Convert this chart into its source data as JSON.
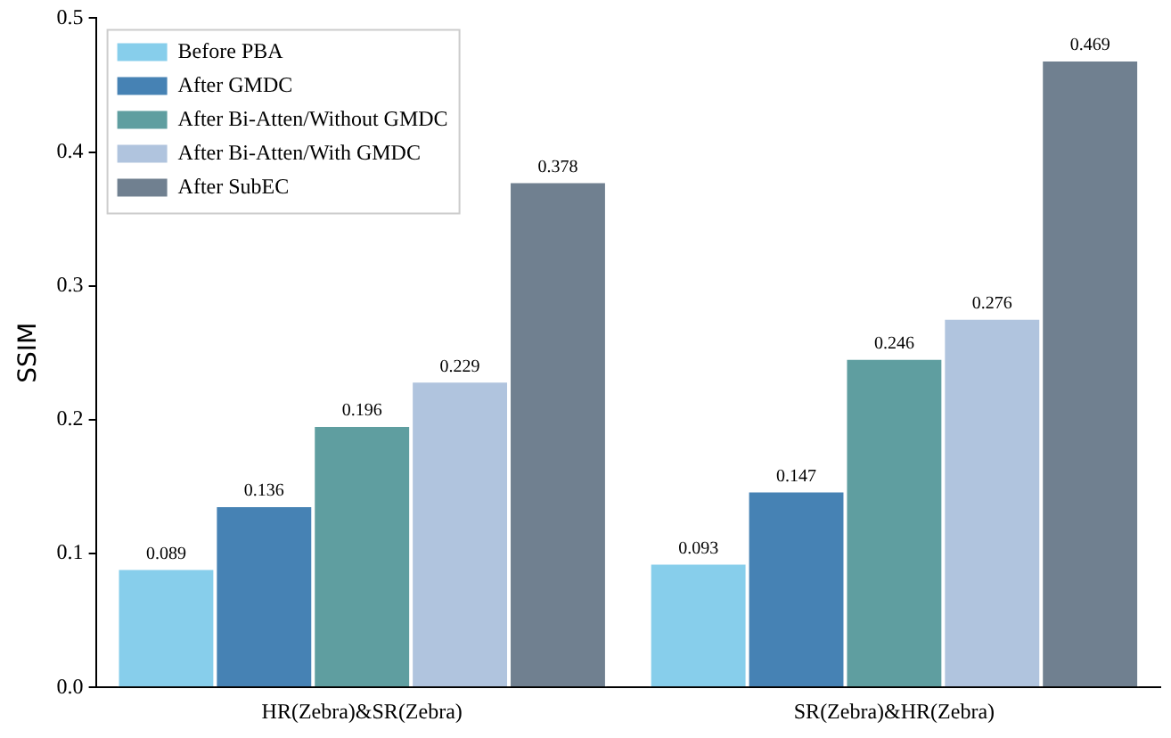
{
  "chart_data": {
    "type": "bar",
    "ylabel": "SSIM",
    "categories": [
      "HR(Zebra)&SR(Zebra)",
      "SR(Zebra)&HR(Zebra)"
    ],
    "series": [
      {
        "name": "Before PBA",
        "color": "#87ceeb",
        "values": [
          0.089,
          0.093
        ]
      },
      {
        "name": "After GMDC",
        "color": "#4682b4",
        "values": [
          0.136,
          0.147
        ]
      },
      {
        "name": "After Bi-Atten/Without GMDC",
        "color": "#5f9ea0",
        "values": [
          0.196,
          0.246
        ]
      },
      {
        "name": "After Bi-Atten/With GMDC",
        "color": "#b0c4de",
        "values": [
          0.229,
          0.276
        ]
      },
      {
        "name": "After SubEC",
        "color": "#708090",
        "values": [
          0.378,
          0.469
        ]
      }
    ],
    "ylim": [
      0,
      0.5
    ],
    "yticks": [
      {
        "value": 0,
        "label": "0.0"
      },
      0.1,
      0.2,
      0.3,
      0.4,
      0.5
    ],
    "grid": false,
    "legend": "top left",
    "data_labels": true
  }
}
